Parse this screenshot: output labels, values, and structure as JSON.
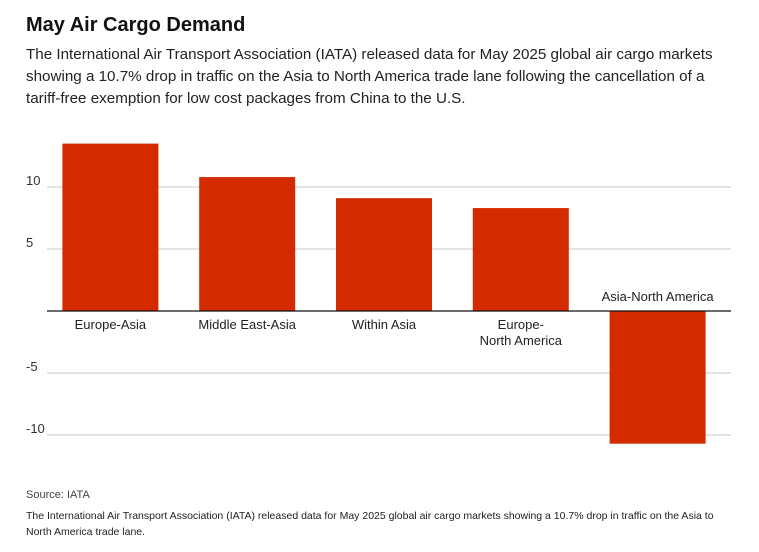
{
  "title": "May Air Cargo Demand",
  "subtitle": "The International Air Transport Association (IATA) released data for May 2025 global air cargo markets showing a 10.7% drop in traffic on the Asia to North America trade lane following the cancellation of a tariff-free exemption for low cost packages from China to the U.S.",
  "source": "Source: IATA",
  "note": "The International Air Transport Association (IATA) released data for May 2025 global air cargo markets showing a 10.7% drop in traffic on the Asia to North America trade lane.",
  "chart_data": {
    "type": "bar",
    "categories": [
      "Europe-Asia",
      "Middle East-Asia",
      "Within Asia",
      "Europe-North America",
      "Asia-North America"
    ],
    "values": [
      13.5,
      10.8,
      9.1,
      8.3,
      -10.7
    ],
    "yticks": [
      10,
      5,
      -5,
      -10
    ],
    "ylim": [
      -11.5,
      14.5
    ],
    "grid": true,
    "bar_color": "#d42a00"
  }
}
